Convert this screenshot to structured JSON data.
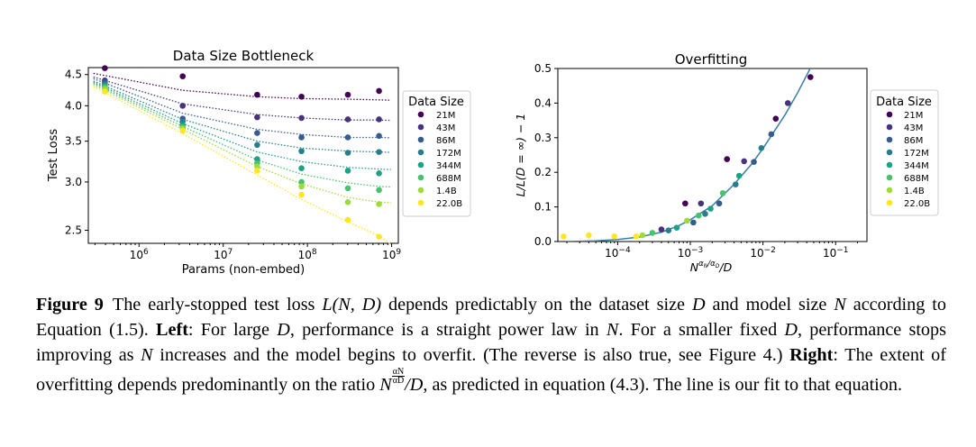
{
  "figure": {
    "left_chart_title": "Data Size Bottleneck",
    "right_chart_title": "Overfitting"
  },
  "caption": {
    "label": "Figure 9",
    "text1": "The early-stopped test loss ",
    "func": "L(N, D)",
    "text2": " depends predictably on the dataset size ",
    "D": "D",
    "text3": " and model size ",
    "N": "N",
    "text4": " according to Equation (1.5). ",
    "left_label": "Left",
    "text5": ": For large ",
    "text6": ", performance is a straight power law in ",
    "text7": ". For a smaller fixed ",
    "text8": ", performance stops improving as ",
    "text9": " increases and the model begins to overfit. (The reverse is also true, see Figure 4.) ",
    "right_label": "Right",
    "text10": ": The extent of overfitting depends predominantly on the ratio ",
    "ratio_base": "N",
    "ratio_num": "αN",
    "ratio_den": "αD",
    "ratio_tail": "/D",
    "text11": ", as predicted in equation (4.3). The line is our fit to that equation."
  },
  "chart_data": [
    {
      "type": "scatter",
      "title": "Data Size Bottleneck",
      "xlabel": "Params (non-embed)",
      "ylabel": "Test Loss",
      "xscale": "log",
      "yscale": "log",
      "xlim": [
        250000,
        1200000000
      ],
      "ylim": [
        2.38,
        4.62
      ],
      "xticks": [
        1000000,
        10000000,
        100000000,
        1000000000
      ],
      "xtick_labels": [
        "10^6",
        "10^7",
        "10^8",
        "10^9"
      ],
      "yticks": [
        2.5,
        3.0,
        3.5,
        4.0,
        4.5
      ],
      "ytick_labels": [
        "2.5",
        "3.0",
        "3.5",
        "4.0",
        "4.5"
      ],
      "x": [
        393000,
        3300000,
        25300000,
        85000000,
        302000000,
        708000000
      ],
      "legend_title": "Data Size",
      "legend_position": "right",
      "series": [
        {
          "name": "21M",
          "color": "#440154",
          "values": [
            4.61,
            4.47,
            4.17,
            4.14,
            4.17,
            4.23
          ]
        },
        {
          "name": "43M",
          "color": "#46327e",
          "values": [
            4.4,
            4.0,
            3.83,
            3.82,
            3.8,
            3.8
          ]
        },
        {
          "name": "86M",
          "color": "#365c8d",
          "values": [
            4.37,
            3.81,
            3.61,
            3.55,
            3.55,
            3.57
          ]
        },
        {
          "name": "172M",
          "color": "#277f8e",
          "values": [
            4.34,
            3.77,
            3.45,
            3.37,
            3.35,
            3.36
          ]
        },
        {
          "name": "344M",
          "color": "#1fa187",
          "values": [
            4.31,
            3.72,
            3.27,
            3.16,
            3.13,
            3.1
          ]
        },
        {
          "name": "688M",
          "color": "#4ac16d",
          "values": [
            4.29,
            3.69,
            3.22,
            3.0,
            2.93,
            2.91
          ]
        },
        {
          "name": "1.4B",
          "color": "#a0da39",
          "values": [
            4.26,
            3.67,
            3.18,
            2.95,
            2.78,
            2.76
          ]
        },
        {
          "name": "22.0B",
          "color": "#fde725",
          "values": [
            4.22,
            3.64,
            3.13,
            2.86,
            2.6,
            2.44
          ]
        }
      ],
      "fit_lines": [
        {
          "name": "21M",
          "values": [
            4.48,
            4.24,
            4.14,
            4.11,
            4.1,
            4.09
          ]
        },
        {
          "name": "43M",
          "values": [
            4.42,
            4.03,
            3.87,
            3.82,
            3.79,
            3.79
          ]
        },
        {
          "name": "86M",
          "values": [
            4.39,
            3.89,
            3.66,
            3.59,
            3.55,
            3.55
          ]
        },
        {
          "name": "172M",
          "values": [
            4.35,
            3.8,
            3.5,
            3.41,
            3.37,
            3.36
          ]
        },
        {
          "name": "344M",
          "values": [
            4.33,
            3.74,
            3.36,
            3.24,
            3.17,
            3.15
          ]
        },
        {
          "name": "688M",
          "values": [
            4.31,
            3.7,
            3.26,
            3.09,
            2.99,
            2.95
          ]
        },
        {
          "name": "1.4B",
          "values": [
            4.29,
            3.66,
            3.18,
            2.98,
            2.83,
            2.78
          ]
        },
        {
          "name": "22.0B",
          "values": [
            4.26,
            3.6,
            3.08,
            2.81,
            2.58,
            2.45
          ]
        }
      ]
    },
    {
      "type": "scatter",
      "title": "Overfitting",
      "xlabel": "N^(αN/αD)/D",
      "ylabel": "L/L(D = ∞) − 1",
      "xscale": "log",
      "xlim": [
        1.5e-05,
        0.27
      ],
      "ylim": [
        0.0,
        0.5
      ],
      "xticks": [
        0.0001,
        0.001,
        0.01,
        0.1
      ],
      "xtick_labels": [
        "10^-4",
        "10^-3",
        "10^-2",
        "10^-1"
      ],
      "yticks": [
        0.0,
        0.1,
        0.2,
        0.3,
        0.4,
        0.5
      ],
      "ytick_labels": [
        "0.0",
        "0.1",
        "0.2",
        "0.3",
        "0.4",
        "0.5"
      ],
      "legend_title": "Data Size",
      "legend_position": "right",
      "fit_curve": {
        "x": [
          2e-05,
          5e-05,
          0.0001,
          0.0002,
          0.0004,
          0.0007,
          0.001,
          0.002,
          0.004,
          0.007,
          0.01,
          0.02,
          0.03,
          0.05
        ],
        "y": [
          0.0,
          0.002,
          0.006,
          0.013,
          0.027,
          0.046,
          0.063,
          0.103,
          0.165,
          0.224,
          0.269,
          0.365,
          0.43,
          0.52
        ]
      },
      "series": [
        {
          "name": "21M",
          "color": "#440154",
          "x": [
            0.00085,
            0.0032,
            0.015,
            0.045
          ],
          "y": [
            0.11,
            0.238,
            0.355,
            0.475
          ]
        },
        {
          "name": "43M",
          "color": "#46327e",
          "x": [
            0.0004,
            0.0014,
            0.0055,
            0.022
          ],
          "y": [
            0.035,
            0.11,
            0.232,
            0.4
          ]
        },
        {
          "name": "86M",
          "color": "#365c8d",
          "x": [
            0.0011,
            0.0025,
            0.0075,
            0.013
          ],
          "y": [
            0.055,
            0.11,
            0.23,
            0.31
          ]
        },
        {
          "name": "172M",
          "color": "#277f8e",
          "x": [
            0.0005,
            0.0016,
            0.0042,
            0.0095
          ],
          "y": [
            0.032,
            0.08,
            0.165,
            0.27
          ]
        },
        {
          "name": "344M",
          "color": "#1fa187",
          "x": [
            0.00065,
            0.0019,
            0.0047
          ],
          "y": [
            0.04,
            0.095,
            0.19
          ]
        },
        {
          "name": "688M",
          "color": "#4ac16d",
          "x": [
            0.0003,
            0.0013,
            0.0028
          ],
          "y": [
            0.025,
            0.075,
            0.14
          ]
        },
        {
          "name": "1.4B",
          "color": "#a0da39",
          "x": [
            0.00022,
            0.0009
          ],
          "y": [
            0.018,
            0.06
          ]
        },
        {
          "name": "22.0B",
          "color": "#fde725",
          "x": [
            1.8e-05,
            4e-05,
            9e-05,
            0.00018
          ],
          "y": [
            0.015,
            0.018,
            0.015,
            0.015
          ]
        }
      ]
    }
  ]
}
